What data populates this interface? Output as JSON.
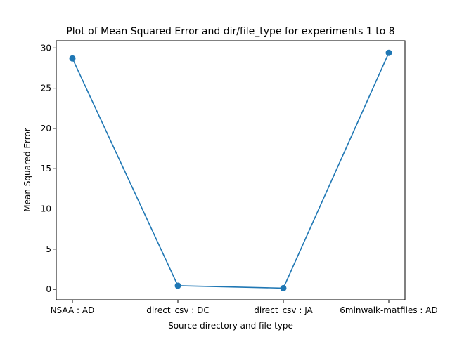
{
  "chart_data": {
    "type": "line",
    "title": "Plot of Mean Squared Error and dir/file_type for experiments 1 to 8",
    "xlabel": "Source directory and file type",
    "ylabel": "Mean Squared Error",
    "categories": [
      "NSAA : AD",
      "direct_csv : DC",
      "direct_csv : JA",
      "6minwalk-matfiles : AD"
    ],
    "values": [
      28.7,
      0.45,
      0.15,
      29.4
    ],
    "yticks": [
      0,
      5,
      10,
      15,
      20,
      25,
      30
    ],
    "ylim": [
      -1.3,
      30.9
    ],
    "grid": false,
    "markers": true,
    "colors": {
      "series": "#1f77b4"
    }
  }
}
